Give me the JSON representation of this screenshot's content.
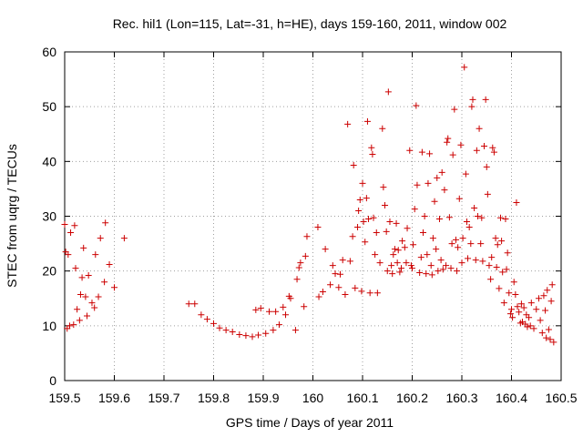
{
  "chart_data": {
    "type": "scatter",
    "title": "Rec. hil1 (Lon=115, Lat=-31, h=HE), days 159-160, 2011, window 002",
    "xlabel": "GPS time / Days of year 2011",
    "ylabel": "STEC from uqrg / TECUs",
    "xlim": [
      159.5,
      160.5
    ],
    "ylim": [
      0,
      60
    ],
    "xticks": [
      "159.5",
      "159.6",
      "159.7",
      "159.8",
      "159.9",
      "160",
      "160.1",
      "160.2",
      "160.3",
      "160.4",
      "160.5"
    ],
    "yticks": [
      "0",
      "10",
      "20",
      "30",
      "40",
      "50",
      "60"
    ],
    "grid": true,
    "marker": "+",
    "color": "#cc0000",
    "points": [
      [
        159.5,
        28.5
      ],
      [
        159.502,
        23.5
      ],
      [
        159.505,
        9.5
      ],
      [
        159.507,
        23.0
      ],
      [
        159.51,
        10.0
      ],
      [
        159.512,
        27.0
      ],
      [
        159.518,
        10.2
      ],
      [
        159.52,
        28.3
      ],
      [
        159.522,
        20.5
      ],
      [
        159.525,
        13.0
      ],
      [
        159.53,
        11.0
      ],
      [
        159.532,
        15.7
      ],
      [
        159.535,
        18.8
      ],
      [
        159.538,
        24.2
      ],
      [
        159.542,
        15.3
      ],
      [
        159.545,
        11.8
      ],
      [
        159.548,
        19.2
      ],
      [
        159.555,
        14.2
      ],
      [
        159.56,
        13.3
      ],
      [
        159.562,
        23.0
      ],
      [
        159.568,
        15.3
      ],
      [
        159.572,
        26.0
      ],
      [
        159.58,
        18.0
      ],
      [
        159.582,
        28.8
      ],
      [
        159.59,
        21.2
      ],
      [
        159.6,
        17.0
      ],
      [
        159.62,
        26.0
      ],
      [
        159.75,
        14.0
      ],
      [
        159.762,
        14.0
      ],
      [
        159.775,
        12.0
      ],
      [
        159.787,
        11.2
      ],
      [
        159.8,
        10.4
      ],
      [
        159.812,
        9.6
      ],
      [
        159.825,
        9.2
      ],
      [
        159.838,
        8.9
      ],
      [
        159.852,
        8.4
      ],
      [
        159.865,
        8.2
      ],
      [
        159.878,
        8.0
      ],
      [
        159.885,
        12.9
      ],
      [
        159.89,
        8.3
      ],
      [
        159.895,
        13.2
      ],
      [
        159.905,
        8.6
      ],
      [
        159.912,
        12.6
      ],
      [
        159.92,
        9.2
      ],
      [
        159.925,
        12.6
      ],
      [
        159.932,
        10.2
      ],
      [
        159.94,
        13.4
      ],
      [
        159.945,
        12.0
      ],
      [
        159.952,
        15.4
      ],
      [
        159.955,
        15.0
      ],
      [
        159.965,
        9.2
      ],
      [
        159.968,
        18.5
      ],
      [
        159.972,
        20.6
      ],
      [
        159.975,
        21.5
      ],
      [
        159.982,
        13.5
      ],
      [
        159.985,
        22.7
      ],
      [
        159.988,
        26.3
      ],
      [
        160.01,
        28.0
      ],
      [
        160.012,
        15.3
      ],
      [
        160.02,
        16.2
      ],
      [
        160.025,
        24.0
      ],
      [
        160.035,
        17.5
      ],
      [
        160.04,
        21.0
      ],
      [
        160.045,
        19.5
      ],
      [
        160.052,
        17.0
      ],
      [
        160.055,
        19.4
      ],
      [
        160.06,
        22.0
      ],
      [
        160.065,
        15.7
      ],
      [
        160.07,
        46.8
      ],
      [
        160.075,
        21.8
      ],
      [
        160.08,
        26.3
      ],
      [
        160.082,
        39.3
      ],
      [
        160.085,
        16.9
      ],
      [
        160.09,
        28.0
      ],
      [
        160.092,
        31.0
      ],
      [
        160.095,
        33.0
      ],
      [
        160.098,
        16.3
      ],
      [
        160.1,
        36.0
      ],
      [
        160.102,
        29.0
      ],
      [
        160.105,
        25.3
      ],
      [
        160.108,
        33.3
      ],
      [
        160.11,
        47.3
      ],
      [
        160.112,
        29.5
      ],
      [
        160.115,
        16.0
      ],
      [
        160.118,
        42.5
      ],
      [
        160.12,
        41.3
      ],
      [
        160.122,
        29.7
      ],
      [
        160.125,
        23.0
      ],
      [
        160.128,
        27.0
      ],
      [
        160.13,
        16.0
      ],
      [
        160.135,
        21.5
      ],
      [
        160.14,
        46.0
      ],
      [
        160.142,
        35.3
      ],
      [
        160.145,
        32.0
      ],
      [
        160.148,
        27.2
      ],
      [
        160.15,
        20.0
      ],
      [
        160.152,
        52.7
      ],
      [
        160.155,
        29.0
      ],
      [
        160.158,
        21.0
      ],
      [
        160.16,
        19.5
      ],
      [
        160.162,
        23.0
      ],
      [
        160.165,
        24.0
      ],
      [
        160.168,
        28.7
      ],
      [
        160.17,
        21.5
      ],
      [
        160.172,
        23.8
      ],
      [
        160.175,
        19.8
      ],
      [
        160.178,
        20.5
      ],
      [
        160.18,
        25.5
      ],
      [
        160.185,
        24.3
      ],
      [
        160.188,
        21.5
      ],
      [
        160.19,
        27.8
      ],
      [
        160.195,
        42.0
      ],
      [
        160.198,
        21.0
      ],
      [
        160.2,
        20.5
      ],
      [
        160.202,
        24.8
      ],
      [
        160.205,
        31.3
      ],
      [
        160.208,
        50.2
      ],
      [
        160.21,
        35.7
      ],
      [
        160.215,
        19.7
      ],
      [
        160.218,
        22.5
      ],
      [
        160.22,
        41.7
      ],
      [
        160.222,
        27.0
      ],
      [
        160.225,
        30.0
      ],
      [
        160.228,
        19.5
      ],
      [
        160.23,
        23.0
      ],
      [
        160.232,
        36.0
      ],
      [
        160.235,
        41.4
      ],
      [
        160.238,
        21.0
      ],
      [
        160.24,
        19.3
      ],
      [
        160.242,
        26.0
      ],
      [
        160.245,
        32.7
      ],
      [
        160.248,
        24.0
      ],
      [
        160.25,
        37.0
      ],
      [
        160.252,
        20.0
      ],
      [
        160.255,
        29.5
      ],
      [
        160.258,
        22.0
      ],
      [
        160.26,
        38.0
      ],
      [
        160.262,
        20.3
      ],
      [
        160.265,
        34.8
      ],
      [
        160.268,
        21.0
      ],
      [
        160.27,
        43.5
      ],
      [
        160.272,
        44.2
      ],
      [
        160.275,
        29.8
      ],
      [
        160.278,
        20.5
      ],
      [
        160.28,
        25.0
      ],
      [
        160.282,
        41.2
      ],
      [
        160.285,
        49.5
      ],
      [
        160.288,
        25.7
      ],
      [
        160.29,
        20.0
      ],
      [
        160.292,
        24.3
      ],
      [
        160.295,
        33.2
      ],
      [
        160.298,
        43.0
      ],
      [
        160.3,
        21.5
      ],
      [
        160.302,
        26.0
      ],
      [
        160.305,
        57.2
      ],
      [
        160.308,
        37.7
      ],
      [
        160.31,
        29.0
      ],
      [
        160.312,
        22.3
      ],
      [
        160.315,
        28.0
      ],
      [
        160.318,
        25.0
      ],
      [
        160.32,
        50.0
      ],
      [
        160.322,
        51.3
      ],
      [
        160.325,
        31.5
      ],
      [
        160.328,
        22.0
      ],
      [
        160.33,
        42.0
      ],
      [
        160.332,
        30.0
      ],
      [
        160.335,
        46.0
      ],
      [
        160.338,
        25.0
      ],
      [
        160.34,
        29.7
      ],
      [
        160.342,
        21.8
      ],
      [
        160.345,
        42.8
      ],
      [
        160.348,
        51.3
      ],
      [
        160.35,
        39.0
      ],
      [
        160.352,
        34.0
      ],
      [
        160.355,
        21.0
      ],
      [
        160.358,
        18.5
      ],
      [
        160.36,
        22.5
      ],
      [
        160.362,
        42.5
      ],
      [
        160.365,
        41.7
      ],
      [
        160.368,
        26.0
      ],
      [
        160.37,
        20.7
      ],
      [
        160.372,
        24.8
      ],
      [
        160.375,
        16.8
      ],
      [
        160.378,
        29.7
      ],
      [
        160.38,
        25.5
      ],
      [
        160.382,
        19.8
      ],
      [
        160.385,
        14.2
      ],
      [
        160.388,
        29.5
      ],
      [
        160.39,
        20.3
      ],
      [
        160.392,
        23.3
      ],
      [
        160.395,
        16.0
      ],
      [
        160.398,
        12.2
      ],
      [
        160.4,
        13.0
      ],
      [
        160.402,
        11.5
      ],
      [
        160.405,
        18.0
      ],
      [
        160.408,
        15.7
      ],
      [
        160.41,
        32.5
      ],
      [
        160.412,
        13.5
      ],
      [
        160.415,
        12.5
      ],
      [
        160.418,
        10.5
      ],
      [
        160.42,
        14.0
      ],
      [
        160.422,
        10.7
      ],
      [
        160.425,
        13.3
      ],
      [
        160.428,
        10.3
      ],
      [
        160.43,
        12.0
      ],
      [
        160.432,
        9.8
      ],
      [
        160.435,
        11.5
      ],
      [
        160.438,
        10.0
      ],
      [
        160.44,
        14.2
      ],
      [
        160.445,
        9.5
      ],
      [
        160.45,
        13.0
      ],
      [
        160.455,
        15.0
      ],
      [
        160.458,
        11.0
      ],
      [
        160.462,
        8.7
      ],
      [
        160.465,
        15.5
      ],
      [
        160.468,
        12.8
      ],
      [
        160.47,
        7.8
      ],
      [
        160.472,
        16.5
      ],
      [
        160.475,
        9.3
      ],
      [
        160.478,
        7.5
      ],
      [
        160.48,
        14.5
      ],
      [
        160.482,
        17.5
      ],
      [
        160.485,
        7.0
      ]
    ]
  }
}
